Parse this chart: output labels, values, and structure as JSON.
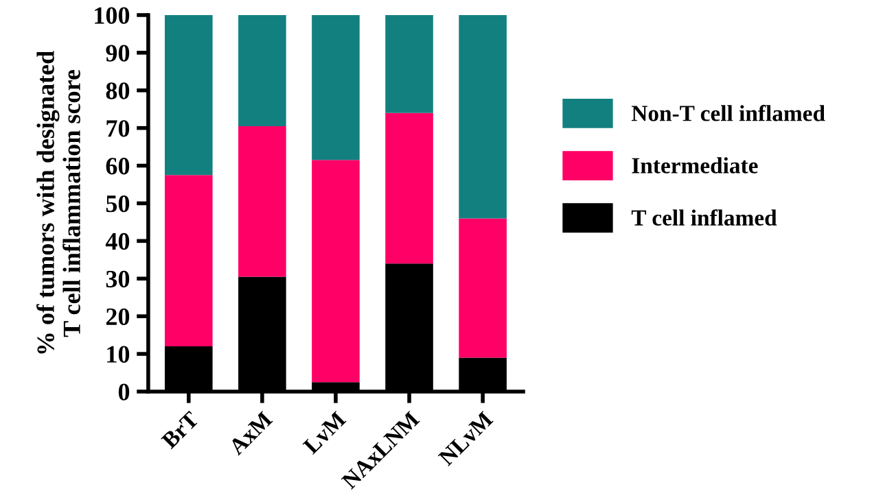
{
  "chart_data": {
    "type": "bar",
    "stacked": true,
    "ylabel": "% of tumors with designated\nT cell inflammation score",
    "categories": [
      "BrT",
      "AxM",
      "LvM",
      "NAxLNM",
      "NLvM"
    ],
    "series": [
      {
        "name": "T cell inflamed",
        "color": "#000000",
        "values": [
          12,
          30.5,
          2.5,
          34,
          9
        ]
      },
      {
        "name": "Intermediate",
        "color": "#ff0066",
        "values": [
          45.5,
          40,
          59,
          40,
          37
        ]
      },
      {
        "name": "Non-T cell inflamed",
        "color": "#138080",
        "values": [
          42.5,
          29.5,
          38.5,
          26,
          54
        ]
      }
    ],
    "ylim": [
      0,
      100
    ],
    "yticks": [
      0,
      10,
      20,
      30,
      40,
      50,
      60,
      70,
      80,
      90,
      100
    ],
    "grid": false,
    "legend": "right"
  }
}
